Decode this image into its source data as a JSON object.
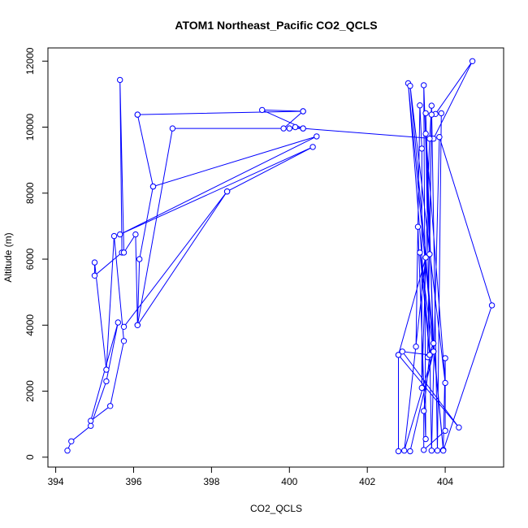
{
  "chart_data": {
    "type": "line",
    "title": "ATOM1 Northeast_Pacific CO2_QCLS",
    "xlabel": "CO2_QCLS",
    "ylabel": "Altitude (m)",
    "xlim": [
      393.8,
      405.5
    ],
    "ylim": [
      -300,
      12400
    ],
    "xticks": [
      394,
      396,
      398,
      400,
      402,
      404
    ],
    "yticks": [
      0,
      2000,
      4000,
      6000,
      8000,
      10000,
      12000
    ],
    "grid": false,
    "marker": "open-circle",
    "color": "#0000ff",
    "series": [
      {
        "points": [
          [
            394.3,
            200
          ],
          [
            394.4,
            480
          ],
          [
            394.9,
            950
          ],
          [
            395.3,
            2300
          ],
          [
            395.6,
            4080
          ],
          [
            394.9,
            1100
          ],
          [
            395.4,
            1550
          ],
          [
            395.75,
            3520
          ],
          [
            395.5,
            6700
          ],
          [
            395.3,
            2650
          ],
          [
            395.0,
            5900
          ],
          [
            395.0,
            5500
          ],
          [
            395.7,
            6200
          ],
          [
            395.65,
            11430
          ],
          [
            395.75,
            6200
          ],
          [
            396.05,
            6750
          ],
          [
            396.1,
            4000
          ],
          [
            396.15,
            6000
          ],
          [
            396.5,
            8200
          ],
          [
            396.1,
            10380
          ],
          [
            396.5,
            8200
          ],
          [
            400.7,
            9720
          ],
          [
            395.65,
            6750
          ],
          [
            400.6,
            9400
          ],
          [
            398.4,
            8050
          ],
          [
            395.75,
            3950
          ],
          [
            398.4,
            8050
          ],
          [
            396.1,
            4000
          ],
          [
            397.0,
            9960
          ],
          [
            400.35,
            9960
          ],
          [
            399.3,
            10520
          ],
          [
            400.35,
            10480
          ],
          [
            396.1,
            10380
          ],
          [
            400.35,
            10480
          ],
          [
            399.85,
            9960
          ],
          [
            400.0,
            9960
          ],
          [
            400.15,
            10000
          ],
          [
            400.35,
            9960
          ],
          [
            403.7,
            9650
          ],
          [
            404.7,
            12000
          ],
          [
            403.75,
            10400
          ],
          [
            403.9,
            10420
          ],
          [
            403.8,
            200
          ],
          [
            403.65,
            10650
          ],
          [
            403.6,
            9650
          ],
          [
            403.4,
            2100
          ],
          [
            403.4,
            9350
          ],
          [
            403.35,
            10660
          ],
          [
            403.25,
            3350
          ],
          [
            403.3,
            6980
          ],
          [
            403.5,
            550
          ],
          [
            403.45,
            11270
          ],
          [
            403.6,
            6150
          ],
          [
            403.65,
            10380
          ],
          [
            403.55,
            3030
          ],
          [
            403.7,
            3450
          ],
          [
            403.5,
            10420
          ],
          [
            403.7,
            3200
          ],
          [
            403.35,
            6200
          ],
          [
            403.6,
            3100
          ],
          [
            403.05,
            11330
          ],
          [
            403.95,
            220
          ],
          [
            403.1,
            11250
          ],
          [
            404.0,
            2250
          ],
          [
            403.5,
            9800
          ],
          [
            403.65,
            200
          ],
          [
            403.85,
            9700
          ],
          [
            405.2,
            4600
          ],
          [
            403.95,
            200
          ],
          [
            404.0,
            3000
          ],
          [
            404.0,
            800
          ],
          [
            403.45,
            220
          ],
          [
            403.45,
            1400
          ],
          [
            403.6,
            3100
          ],
          [
            402.9,
            3200
          ],
          [
            404.35,
            900
          ],
          [
            402.8,
            3100
          ],
          [
            402.8,
            180
          ],
          [
            403.1,
            180
          ],
          [
            403.7,
            3200
          ],
          [
            402.95,
            200
          ],
          [
            403.5,
            6050
          ],
          [
            402.8,
            3100
          ]
        ]
      }
    ]
  }
}
